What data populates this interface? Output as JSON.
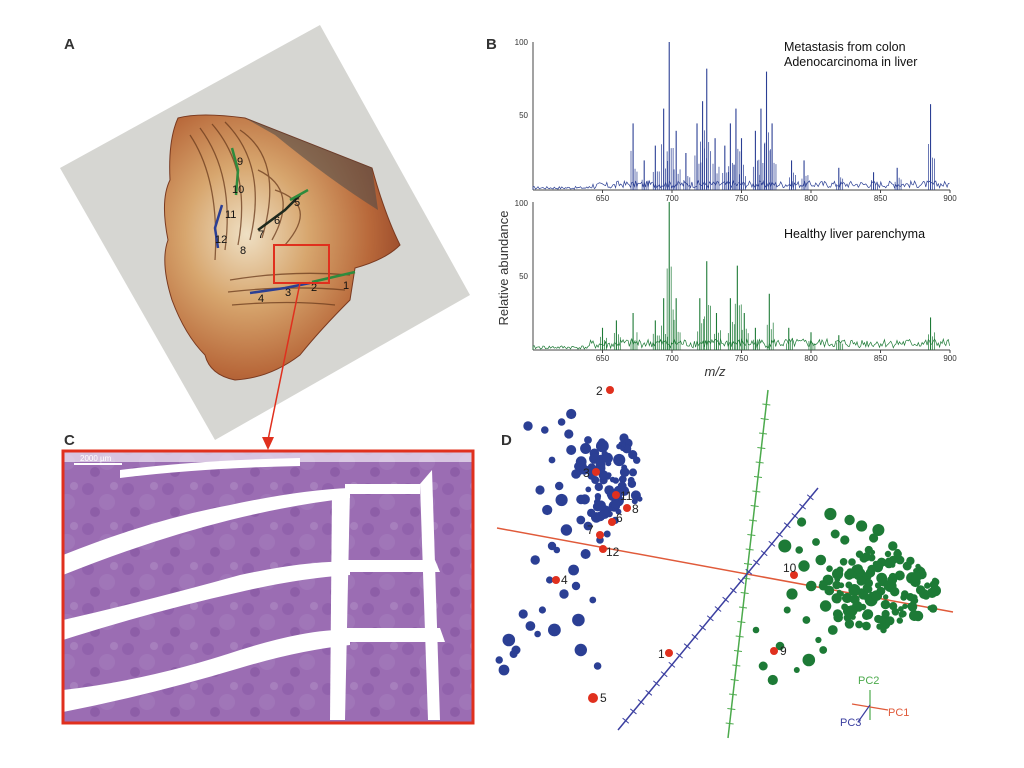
{
  "panels": {
    "a": "A",
    "b": "B",
    "c": "C",
    "d": "D"
  },
  "panel_a": {
    "section_labels": [
      "1",
      "2",
      "3",
      "4",
      "5",
      "6",
      "7",
      "8",
      "9",
      "10",
      "11",
      "12"
    ]
  },
  "panel_c": {
    "scale_bar": "2000 µm"
  },
  "panel_b": {
    "annotation_top_1": "Metastasis from colon",
    "annotation_top_2": "Adenocarcinoma in liver",
    "annotation_bottom": "Healthy liver parenchyma",
    "ylabel": "Relative abundance",
    "xlabel": "m/z",
    "x_ticks": [
      "650",
      "700",
      "750",
      "800",
      "850",
      "900"
    ],
    "y_ticks_top": [
      "100",
      "50"
    ],
    "y_ticks_bottom": [
      "100",
      "50"
    ]
  },
  "panel_d": {
    "sample_labels": [
      "1",
      "2",
      "3",
      "4",
      "5",
      "6",
      "7",
      "8",
      "9",
      "10",
      "11",
      "12"
    ],
    "pc1": "PC1",
    "pc2": "PC2",
    "pc3": "PC3"
  },
  "colors": {
    "tumor": "#2b3f94",
    "healthy": "#1d7a36",
    "highlight": "#e0301e",
    "pc1": "#e05a3a",
    "pc2": "#4caa4c",
    "pc3": "#3b3fa0"
  },
  "chart_data": [
    {
      "type": "line",
      "title": "",
      "annotation": "Metastasis from colon Adenocarcinoma in liver",
      "xlabel": "m/z",
      "ylabel": "Relative abundance",
      "xlim": [
        600,
        900
      ],
      "ylim": [
        0,
        100
      ],
      "peaks": [
        {
          "x": 672,
          "y": 45
        },
        {
          "x": 680,
          "y": 20
        },
        {
          "x": 688,
          "y": 30
        },
        {
          "x": 694,
          "y": 55
        },
        {
          "x": 698,
          "y": 100
        },
        {
          "x": 703,
          "y": 40
        },
        {
          "x": 710,
          "y": 25
        },
        {
          "x": 718,
          "y": 45
        },
        {
          "x": 722,
          "y": 60
        },
        {
          "x": 725,
          "y": 82
        },
        {
          "x": 731,
          "y": 35
        },
        {
          "x": 738,
          "y": 30
        },
        {
          "x": 742,
          "y": 45
        },
        {
          "x": 746,
          "y": 55
        },
        {
          "x": 750,
          "y": 35
        },
        {
          "x": 760,
          "y": 40
        },
        {
          "x": 764,
          "y": 55
        },
        {
          "x": 768,
          "y": 80
        },
        {
          "x": 772,
          "y": 45
        },
        {
          "x": 786,
          "y": 20
        },
        {
          "x": 795,
          "y": 20
        },
        {
          "x": 820,
          "y": 15
        },
        {
          "x": 845,
          "y": 12
        },
        {
          "x": 862,
          "y": 15
        },
        {
          "x": 886,
          "y": 58
        }
      ]
    },
    {
      "type": "line",
      "title": "",
      "annotation": "Healthy liver parenchyma",
      "xlabel": "m/z",
      "ylabel": "Relative abundance",
      "xlim": [
        600,
        900
      ],
      "ylim": [
        0,
        100
      ],
      "peaks": [
        {
          "x": 650,
          "y": 15
        },
        {
          "x": 660,
          "y": 20
        },
        {
          "x": 672,
          "y": 25
        },
        {
          "x": 688,
          "y": 20
        },
        {
          "x": 694,
          "y": 35
        },
        {
          "x": 698,
          "y": 100
        },
        {
          "x": 703,
          "y": 35
        },
        {
          "x": 720,
          "y": 35
        },
        {
          "x": 725,
          "y": 60
        },
        {
          "x": 732,
          "y": 25
        },
        {
          "x": 742,
          "y": 35
        },
        {
          "x": 747,
          "y": 57
        },
        {
          "x": 752,
          "y": 25
        },
        {
          "x": 760,
          "y": 15
        },
        {
          "x": 770,
          "y": 38
        },
        {
          "x": 784,
          "y": 15
        },
        {
          "x": 800,
          "y": 12
        },
        {
          "x": 820,
          "y": 10
        },
        {
          "x": 886,
          "y": 22
        }
      ]
    },
    {
      "type": "scatter",
      "title": "",
      "axes": [
        "PC1",
        "PC2",
        "PC3"
      ],
      "series": [
        {
          "name": "",
          "color": "#2b3f94",
          "points_count_note": "",
          "x": [
            -0.8,
            -0.62,
            -0.7,
            -0.55,
            -0.75,
            -0.6,
            -0.48,
            -0.66,
            -0.72,
            -0.58,
            -0.52,
            -0.64,
            -0.45,
            -0.68,
            -0.77,
            -0.5,
            -0.61,
            -0.71,
            -0.56,
            -0.65,
            -0.74,
            -0.46,
            -0.59,
            -0.69,
            -0.53,
            -0.82,
            -0.88,
            -0.92,
            -0.85,
            -0.79,
            -0.9,
            -0.86,
            -0.57,
            -0.49,
            -0.63,
            -0.73,
            -0.54,
            -0.67,
            -0.47,
            -0.44,
            -0.6,
            -0.7,
            -0.76,
            -0.58,
            -0.51,
            -0.42,
            -0.4,
            -0.66,
            -0.62,
            -0.55
          ],
          "y": [
            0.72,
            0.6,
            0.55,
            0.65,
            0.4,
            0.48,
            0.58,
            0.35,
            0.3,
            0.25,
            0.45,
            0.2,
            0.38,
            0.1,
            0.05,
            0.15,
            0.0,
            -0.05,
            0.08,
            -0.12,
            -0.2,
            0.28,
            -0.25,
            -0.3,
            -0.15,
            -0.22,
            -0.35,
            -0.45,
            -0.4,
            -0.28,
            -0.5,
            -0.42,
            0.52,
            0.62,
            0.68,
            0.7,
            0.5,
            0.42,
            0.18,
            0.32,
            -0.08,
            0.12,
            -0.32,
            -0.4,
            -0.48,
            0.55,
            0.66,
            0.74,
            0.78,
            0.22
          ]
        },
        {
          "name": "",
          "color": "#1d7a36",
          "x": [
            0.35,
            0.42,
            0.5,
            0.55,
            0.6,
            0.65,
            0.7,
            0.75,
            0.45,
            0.38,
            0.58,
            0.62,
            0.68,
            0.72,
            0.78,
            0.8,
            0.52,
            0.48,
            0.4,
            0.33,
            0.3,
            0.28,
            0.36,
            0.44,
            0.56,
            0.63,
            0.71,
            0.66,
            0.59,
            0.54,
            0.47,
            0.41,
            0.69,
            0.74,
            0.77,
            0.61,
            0.57,
            0.49,
            0.43,
            0.37,
            0.32,
            0.25,
            0.22,
            0.18,
            0.15,
            0.27,
            0.34,
            0.46,
            0.53,
            0.64
          ],
          "y": [
            0.02,
            0.05,
            0.0,
            0.04,
            0.06,
            0.03,
            0.08,
            0.05,
            -0.05,
            -0.08,
            -0.02,
            0.1,
            -0.06,
            0.12,
            0.02,
            -0.04,
            0.15,
            0.18,
            0.14,
            0.1,
            -0.12,
            -0.2,
            -0.25,
            -0.18,
            -0.1,
            -0.15,
            -0.08,
            0.2,
            0.22,
            0.25,
            -0.3,
            -0.35,
            -0.22,
            0.08,
            -0.12,
            -0.28,
            0.0,
            -0.02,
            -0.4,
            -0.45,
            -0.5,
            -0.38,
            -0.55,
            -0.48,
            -0.3,
            0.12,
            0.24,
            0.28,
            -0.14,
            0.16
          ]
        }
      ]
    }
  ]
}
